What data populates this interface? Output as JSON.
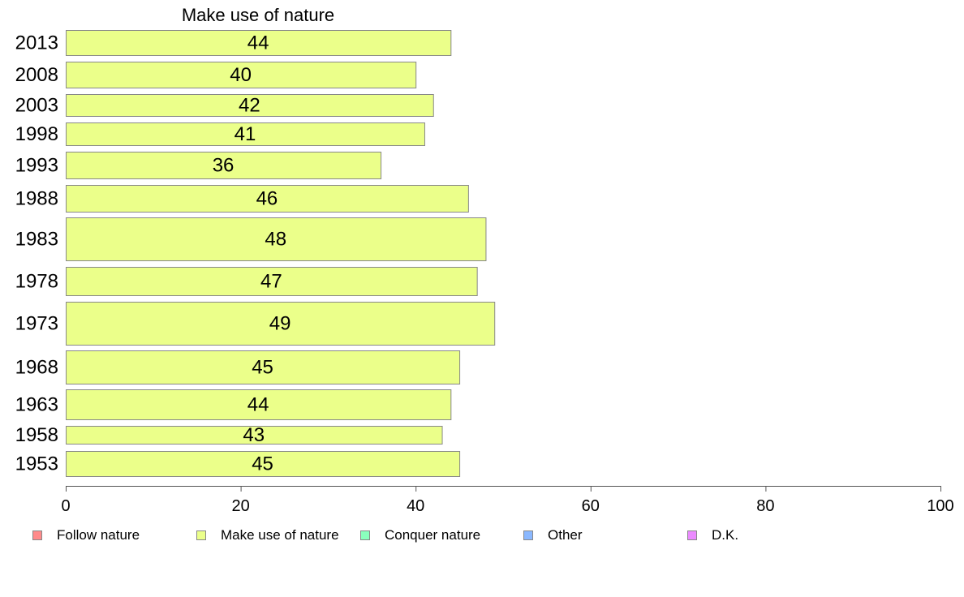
{
  "chart_data": {
    "type": "bar",
    "orientation": "horizontal",
    "title": "Make use of nature",
    "categories": [
      "2013",
      "2008",
      "2003",
      "1998",
      "1993",
      "1988",
      "1983",
      "1978",
      "1973",
      "1968",
      "1963",
      "1958",
      "1953"
    ],
    "values": [
      44,
      40,
      42,
      41,
      36,
      46,
      48,
      47,
      49,
      45,
      44,
      43,
      45
    ],
    "xlim": [
      0,
      100
    ],
    "xticks": [
      "0",
      "20",
      "40",
      "60",
      "80",
      "100"
    ],
    "bar_color": "#ebff8a",
    "bar_stroke": "#888888",
    "grid": false,
    "legend_position": "bottom",
    "legend": [
      {
        "label": "Follow nature",
        "color": "#ff8a8a"
      },
      {
        "label": "Make use of nature",
        "color": "#ebff8a"
      },
      {
        "label": "Conquer nature",
        "color": "#8affbd"
      },
      {
        "label": "Other",
        "color": "#8ab8ff"
      },
      {
        "label": "D.K.",
        "color": "#eb8aff"
      }
    ]
  }
}
